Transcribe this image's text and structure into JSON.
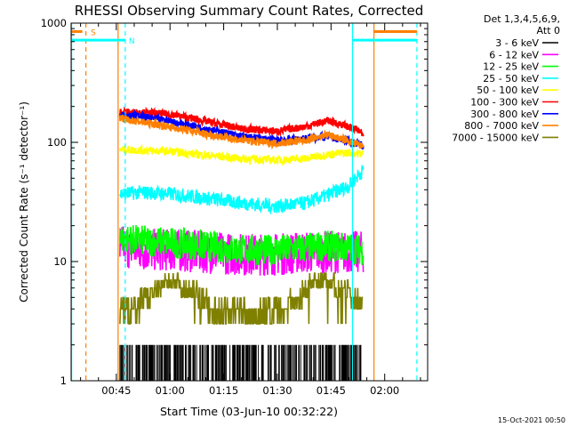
{
  "chart_data": {
    "type": "line",
    "title": "RHESSI Observing Summary Count Rates, Corrected",
    "xlabel": "Start Time (03-Jun-10 00:32:22)",
    "ylabel": "Corrected Count Rate (s⁻¹ detector⁻¹)",
    "y_scale": "log",
    "ylim": [
      1,
      1000
    ],
    "xlim": [
      "00:32:22",
      "02:12:00"
    ],
    "x_ticks": [
      "00:45",
      "01:00",
      "01:15",
      "01:30",
      "01:45",
      "02:00"
    ],
    "y_ticks": [
      "1",
      "10",
      "100",
      "1000"
    ],
    "legend_header": "Det 1,3,4,5,6,9,",
    "legend_subheader": "Att 0",
    "legend_position": "right",
    "series": [
      {
        "name": "3 - 6 keV",
        "color": "#000000",
        "x": [
          "00:46",
          "00:52",
          "01:00",
          "01:10",
          "01:20",
          "01:30",
          "01:38",
          "01:44",
          "01:50",
          "01:54"
        ],
        "y": [
          2,
          2,
          2,
          2,
          2,
          2,
          2,
          2,
          2,
          1
        ]
      },
      {
        "name": "6 - 12 keV",
        "color": "#ff00ff",
        "x": [
          "00:46",
          "00:52",
          "01:00",
          "01:10",
          "01:20",
          "01:30",
          "01:38",
          "01:44",
          "01:50",
          "01:54"
        ],
        "y": [
          13.5,
          12.5,
          12.5,
          12,
          11.5,
          11.5,
          12,
          12,
          12,
          12
        ]
      },
      {
        "name": "12 - 25 keV",
        "color": "#00ff00",
        "x": [
          "00:46",
          "00:52",
          "01:00",
          "01:10",
          "01:20",
          "01:30",
          "01:38",
          "01:44",
          "01:50",
          "01:54"
        ],
        "y": [
          15.5,
          15,
          14.5,
          13.5,
          12.5,
          12.5,
          13,
          13.5,
          13,
          12.5
        ]
      },
      {
        "name": "25 - 50 keV",
        "color": "#00ffff",
        "x": [
          "00:46",
          "00:52",
          "01:00",
          "01:10",
          "01:20",
          "01:30",
          "01:38",
          "01:44",
          "01:50",
          "01:54"
        ],
        "y": [
          37,
          38,
          37,
          34,
          31,
          29,
          31,
          36,
          43,
          58
        ]
      },
      {
        "name": "50 - 100 keV",
        "color": "#ffff00",
        "x": [
          "00:46",
          "00:52",
          "01:00",
          "01:10",
          "01:20",
          "01:30",
          "01:38",
          "01:44",
          "01:50",
          "01:54"
        ],
        "y": [
          87,
          86,
          84,
          78,
          73,
          71,
          73,
          79,
          82,
          80
        ]
      },
      {
        "name": "100 - 300 keV",
        "color": "#ff0000",
        "x": [
          "00:46",
          "00:52",
          "01:00",
          "01:10",
          "01:20",
          "01:30",
          "01:38",
          "01:44",
          "01:50",
          "01:54"
        ],
        "y": [
          180,
          178,
          172,
          150,
          130,
          124,
          136,
          152,
          135,
          120
        ]
      },
      {
        "name": "300 - 800 keV",
        "color": "#0000ff",
        "x": [
          "00:46",
          "00:52",
          "01:00",
          "01:10",
          "01:20",
          "01:30",
          "01:38",
          "01:44",
          "01:50",
          "01:54"
        ],
        "y": [
          170,
          165,
          150,
          130,
          112,
          104,
          108,
          112,
          102,
          95
        ]
      },
      {
        "name": "800 - 7000 keV",
        "color": "#ff8000",
        "x": [
          "00:46",
          "00:52",
          "01:00",
          "01:10",
          "01:20",
          "01:30",
          "01:38",
          "01:44",
          "01:50",
          "01:54"
        ],
        "y": [
          158,
          148,
          135,
          118,
          104,
          98,
          104,
          116,
          102,
          92
        ]
      },
      {
        "name": "7000 - 15000 keV",
        "color": "#808000",
        "x": [
          "00:46",
          "00:50",
          "00:56",
          "01:00",
          "01:06",
          "01:12",
          "01:20",
          "01:30",
          "01:36",
          "01:40",
          "01:44",
          "01:48",
          "01:52",
          "01:54"
        ],
        "y": [
          4,
          4,
          6,
          7,
          6,
          4,
          4,
          4,
          5,
          7,
          7,
          6,
          5,
          4.5
        ]
      }
    ],
    "annotations": [
      {
        "label": "S",
        "color": "#ff8000"
      },
      {
        "label": "N",
        "color": "#00ffff"
      }
    ],
    "footer_stamp": "15-Oct-2021 00:50"
  }
}
